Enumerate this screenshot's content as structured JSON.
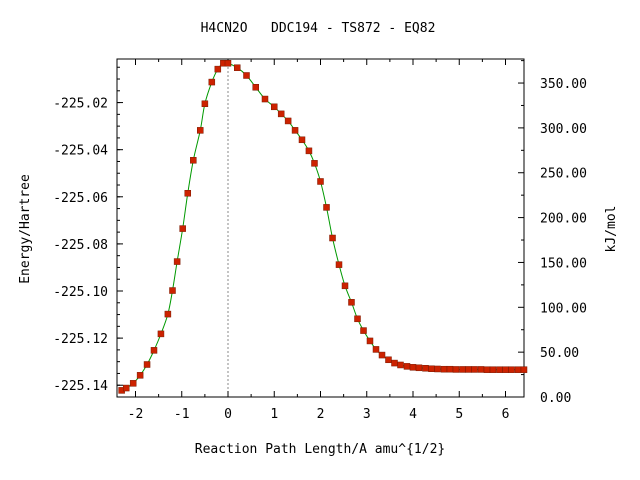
{
  "chart_data": {
    "type": "scatter",
    "title": "H4CN2O   DDC194 - TS872 - EQ82",
    "xlabel": "Reaction Path Length/A amu^{1/2}",
    "ylabel": "Energy/Hartree",
    "y2label": "kJ/mol",
    "xlim": [
      -2.4,
      6.4
    ],
    "ylim": [
      -225.145,
      -225.0015
    ],
    "y2lim": [
      0,
      376.8
    ],
    "xticks": [
      "-2",
      "-1",
      "0",
      "1",
      "2",
      "3",
      "4",
      "5",
      "6"
    ],
    "xtick_values": [
      -2,
      -1,
      0,
      1,
      2,
      3,
      4,
      5,
      6
    ],
    "yticks": [
      "-225.02",
      "-225.04",
      "-225.06",
      "-225.08",
      "-225.10",
      "-225.12",
      "-225.14"
    ],
    "ytick_values": [
      -225.02,
      -225.04,
      -225.06,
      -225.08,
      -225.1,
      -225.12,
      -225.14
    ],
    "y2ticks": [
      "350.00",
      "300.00",
      "250.00",
      "200.00",
      "150.00",
      "100.00",
      "50.00",
      "0.00"
    ],
    "y2tick_values": [
      350,
      300,
      250,
      200,
      150,
      100,
      50,
      0
    ],
    "ts_x": 0,
    "series": [
      {
        "line_color": "#009900",
        "marker_color": "#cc2200",
        "x": [
          -2.3,
          -2.2,
          -2.05,
          -1.9,
          -1.75,
          -1.6,
          -1.45,
          -1.3,
          -1.2,
          -1.1,
          -0.98,
          -0.87,
          -0.75,
          -0.6,
          -0.5,
          -0.35,
          -0.22,
          -0.1,
          0,
          0.2,
          0.4,
          0.6,
          0.8,
          1.0,
          1.15,
          1.3,
          1.45,
          1.6,
          1.75,
          1.87,
          2.0,
          2.13,
          2.26,
          2.4,
          2.53,
          2.67,
          2.8,
          2.93,
          3.07,
          3.2,
          3.33,
          3.47,
          3.6,
          3.73,
          3.87,
          4.0,
          4.13,
          4.27,
          4.4,
          4.53,
          4.67,
          4.8,
          4.93,
          5.07,
          5.2,
          5.33,
          5.47,
          5.6,
          5.73,
          5.87,
          6.0,
          6.13,
          6.27,
          6.4
        ],
        "y": [
          -225.1422,
          -225.1412,
          -225.1392,
          -225.1358,
          -225.1312,
          -225.1252,
          -225.1182,
          -225.1098,
          -225.0998,
          -225.0875,
          -225.0735,
          -225.0585,
          -225.0445,
          -225.0318,
          -225.0205,
          -225.0113,
          -225.0058,
          -225.0033,
          -225.0033,
          -225.0052,
          -225.0085,
          -225.0135,
          -225.0185,
          -225.0218,
          -225.0248,
          -225.0278,
          -225.0318,
          -225.0358,
          -225.0405,
          -225.0458,
          -225.0535,
          -225.0645,
          -225.0775,
          -225.0888,
          -225.0978,
          -225.1048,
          -225.1118,
          -225.1168,
          -225.1212,
          -225.1248,
          -225.1272,
          -225.1292,
          -225.1306,
          -225.1314,
          -225.132,
          -225.1324,
          -225.1326,
          -225.1328,
          -225.133,
          -225.1331,
          -225.1332,
          -225.1332,
          -225.1333,
          -225.1333,
          -225.1333,
          -225.1333,
          -225.1333,
          -225.1334,
          -225.1334,
          -225.1334,
          -225.1334,
          -225.1334,
          -225.1334,
          -225.1334
        ]
      }
    ]
  }
}
